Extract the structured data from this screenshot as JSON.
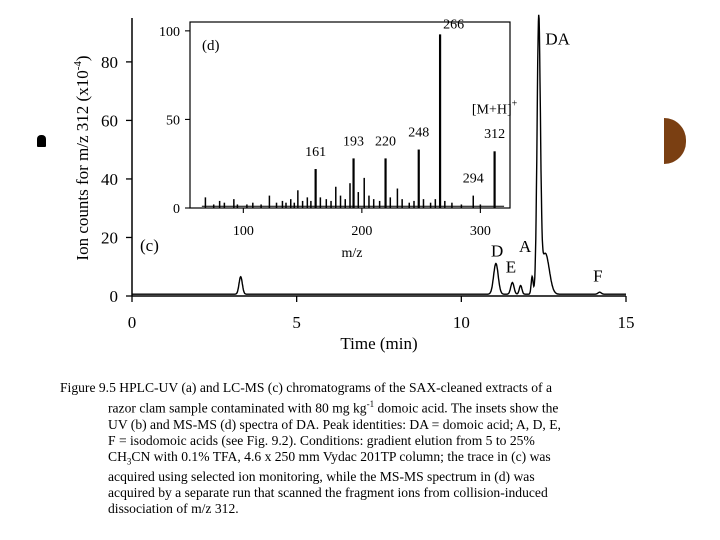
{
  "chart_data": {
    "main": {
      "type": "line",
      "panel_label": "(c)",
      "xlabel": "Time (min)",
      "ylabel_main": "Ion counts for m/z 312 (x10",
      "ylabel_exp": "-4",
      "ylabel_close": ")",
      "xlim": [
        0,
        15
      ],
      "ylim": [
        0,
        95
      ],
      "xticks": [
        0,
        5,
        10,
        15
      ],
      "yticks": [
        0,
        20,
        40,
        60,
        80
      ],
      "peaks": [
        {
          "x": 3.3,
          "y": 6,
          "w": 0.05
        },
        {
          "x": 11.05,
          "y": 10.5,
          "w": 0.07
        },
        {
          "x": 11.55,
          "y": 4,
          "w": 0.05
        },
        {
          "x": 11.8,
          "y": 3,
          "w": 0.04
        },
        {
          "x": 12.15,
          "y": 6,
          "w": 0.03
        },
        {
          "x": 12.35,
          "y": 92,
          "w": 0.05
        },
        {
          "x": 12.55,
          "y": 14,
          "w": 0.12
        },
        {
          "x": 14.2,
          "y": 0.7,
          "w": 0.05
        }
      ],
      "peak_labels": [
        {
          "text": "DA",
          "x": 12.55,
          "y": 86
        },
        {
          "text": "D",
          "x": 10.9,
          "y": 13.5
        },
        {
          "text": "E",
          "x": 11.35,
          "y": 8
        },
        {
          "text": "A",
          "x": 11.75,
          "y": 15
        },
        {
          "text": "F",
          "x": 14.0,
          "y": 5
        }
      ]
    },
    "inset": {
      "type": "bar",
      "panel_label": "(d)",
      "xlabel": "m/z",
      "xlim": [
        55,
        325
      ],
      "ylim": [
        0,
        105
      ],
      "xticks": [
        100,
        200,
        300
      ],
      "yticks": [
        0,
        50,
        100
      ],
      "peaks": [
        {
          "mz": 68,
          "y": 6
        },
        {
          "mz": 75,
          "y": 2
        },
        {
          "mz": 80,
          "y": 4
        },
        {
          "mz": 84,
          "y": 3
        },
        {
          "mz": 92,
          "y": 5
        },
        {
          "mz": 95,
          "y": 2
        },
        {
          "mz": 103,
          "y": 2
        },
        {
          "mz": 108,
          "y": 3
        },
        {
          "mz": 115,
          "y": 2
        },
        {
          "mz": 122,
          "y": 7
        },
        {
          "mz": 128,
          "y": 3
        },
        {
          "mz": 133,
          "y": 4
        },
        {
          "mz": 136,
          "y": 3
        },
        {
          "mz": 140,
          "y": 5
        },
        {
          "mz": 143,
          "y": 3
        },
        {
          "mz": 146,
          "y": 10
        },
        {
          "mz": 150,
          "y": 4
        },
        {
          "mz": 154,
          "y": 6
        },
        {
          "mz": 157,
          "y": 4
        },
        {
          "mz": 161,
          "y": 22
        },
        {
          "mz": 165,
          "y": 6
        },
        {
          "mz": 170,
          "y": 5
        },
        {
          "mz": 174,
          "y": 4
        },
        {
          "mz": 178,
          "y": 12
        },
        {
          "mz": 182,
          "y": 7
        },
        {
          "mz": 186,
          "y": 5
        },
        {
          "mz": 190,
          "y": 14
        },
        {
          "mz": 193,
          "y": 28
        },
        {
          "mz": 197,
          "y": 9
        },
        {
          "mz": 202,
          "y": 17
        },
        {
          "mz": 206,
          "y": 7
        },
        {
          "mz": 210,
          "y": 5
        },
        {
          "mz": 215,
          "y": 4
        },
        {
          "mz": 220,
          "y": 28
        },
        {
          "mz": 224,
          "y": 6
        },
        {
          "mz": 230,
          "y": 11
        },
        {
          "mz": 234,
          "y": 5
        },
        {
          "mz": 240,
          "y": 3
        },
        {
          "mz": 244,
          "y": 4
        },
        {
          "mz": 248,
          "y": 33
        },
        {
          "mz": 252,
          "y": 5
        },
        {
          "mz": 258,
          "y": 3
        },
        {
          "mz": 262,
          "y": 5
        },
        {
          "mz": 266,
          "y": 98
        },
        {
          "mz": 270,
          "y": 4
        },
        {
          "mz": 276,
          "y": 3
        },
        {
          "mz": 284,
          "y": 2
        },
        {
          "mz": 294,
          "y": 7
        },
        {
          "mz": 300,
          "y": 2
        },
        {
          "mz": 312,
          "y": 32
        }
      ],
      "peak_labels": [
        {
          "text": "161",
          "mz": 161,
          "y": 26
        },
        {
          "text": "193",
          "mz": 193,
          "y": 32
        },
        {
          "text": "220",
          "mz": 220,
          "y": 32
        },
        {
          "text": "248",
          "mz": 248,
          "y": 37
        },
        {
          "text": "266",
          "mz": 266,
          "y": 98
        },
        {
          "text": "294",
          "mz": 294,
          "y": 11
        },
        {
          "text": "312",
          "mz": 312,
          "y": 36
        },
        {
          "text": "[M+H]",
          "mz": 312,
          "y": 50
        }
      ],
      "mh_superscript": "+"
    }
  },
  "caption": {
    "lead": "Figure 9.5  HPLC-UV (a) and LC-MS (c) chromatograms of the SAX-cleaned extracts of a",
    "l2a": "razor clam sample contaminated with 80 mg kg",
    "l2sup": "-1",
    "l2b": " domoic acid. The insets show the",
    "l3": "UV (b) and MS-MS (d) spectra of DA. Peak identities: DA = domoic acid; A, D, E,",
    "l4": "F = isodomoic acids (see Fig. 9.2). Conditions: gradient elution from 5 to 25%",
    "l5a": "CH",
    "l5sub": "3",
    "l5b": "CN with 0.1% TFA, 4.6 x 250 mm Vydac 201TP column; the trace in (c) was",
    "l6": "acquired using selected ion monitoring, while the MS-MS spectrum in (d) was",
    "l7": "acquired by a separate run that scanned the fragment ions from collision-induced",
    "l8": "dissociation of m/z 312."
  }
}
